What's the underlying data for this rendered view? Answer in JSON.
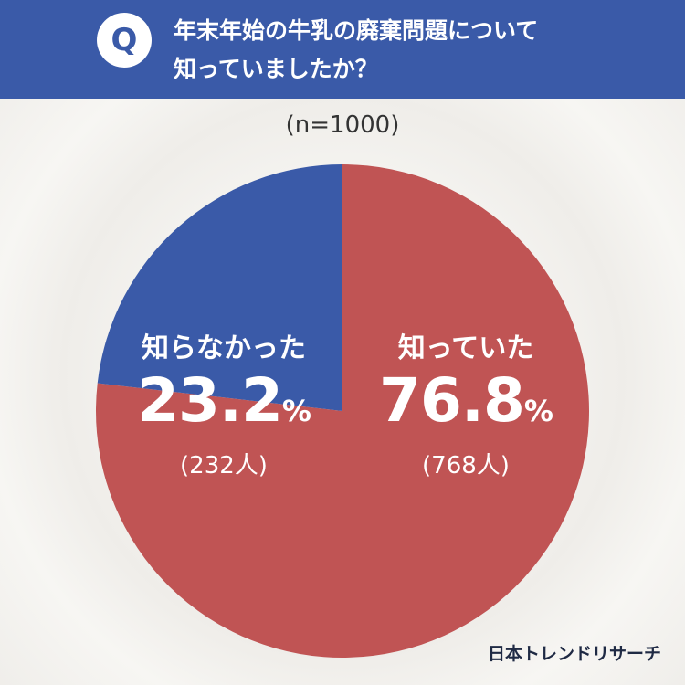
{
  "question": {
    "badge": "Q",
    "line1": "年末年始の牛乳の廃棄問題について",
    "line2": "知っていましたか？"
  },
  "sample": "(n=1000)",
  "brand": "日本トレンドリサーチ",
  "colors": {
    "header": "#3a5aa8",
    "knew": "#c05454",
    "didnt_know": "#3a5aa8"
  },
  "chart_data": {
    "type": "pie",
    "title": "",
    "slices": [
      {
        "label": "知っていた",
        "percent": "76.8",
        "unit": "%",
        "count": "(768人)",
        "value": 76.8,
        "color": "#c05454"
      },
      {
        "label": "知らなかった",
        "percent": "23.2",
        "unit": "%",
        "count": "(232人)",
        "value": 23.2,
        "color": "#3a5aa8"
      }
    ]
  }
}
